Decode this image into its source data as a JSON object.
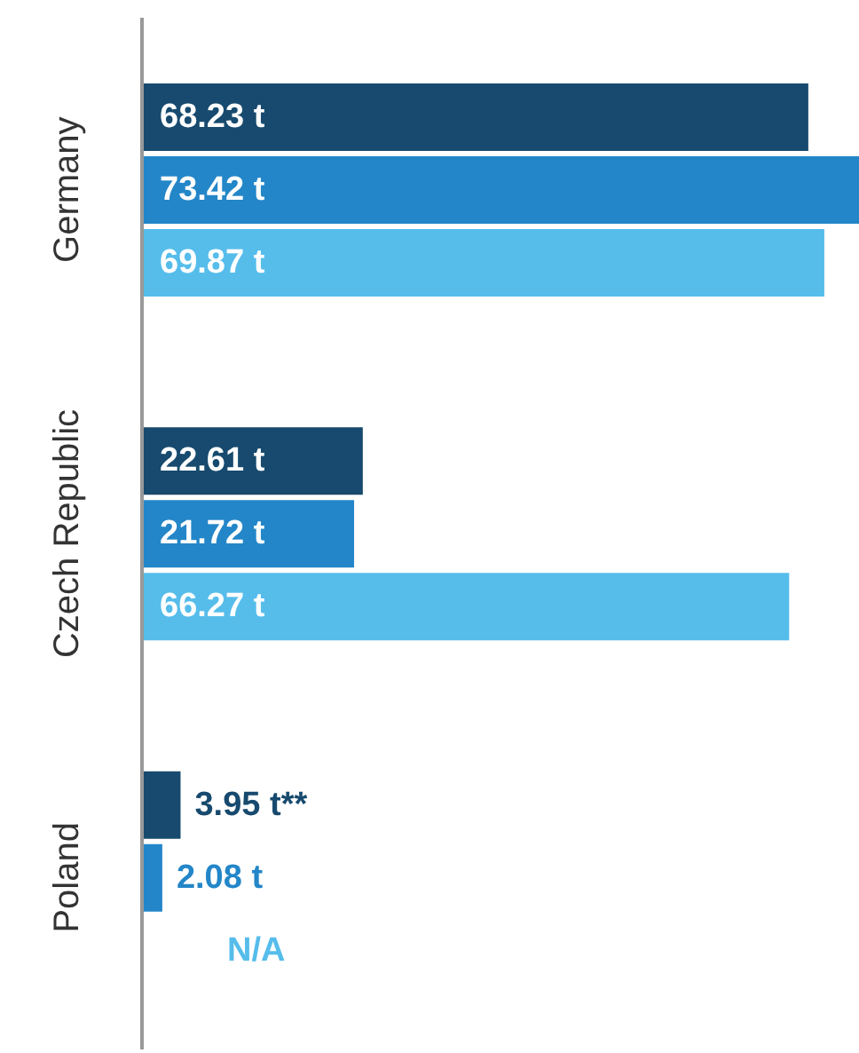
{
  "chart_data": {
    "type": "bar",
    "orientation": "horizontal",
    "categories": [
      "Germany",
      "Czech Republic",
      "Poland"
    ],
    "series": [
      {
        "color": "#174a6e",
        "values": [
          68.23,
          22.61,
          3.95
        ],
        "value_labels": [
          "68.23 t",
          "22.61 t",
          "3.95 t**"
        ]
      },
      {
        "color": "#2386c8",
        "values": [
          73.42,
          21.72,
          2.08
        ],
        "value_labels": [
          "73.42 t",
          "21.72 t",
          "2.08 t"
        ]
      },
      {
        "color": "#56bdeb",
        "values": [
          69.87,
          66.27,
          null
        ],
        "value_labels": [
          "69.87 t",
          "66.27 t",
          "N/A"
        ]
      }
    ]
  }
}
